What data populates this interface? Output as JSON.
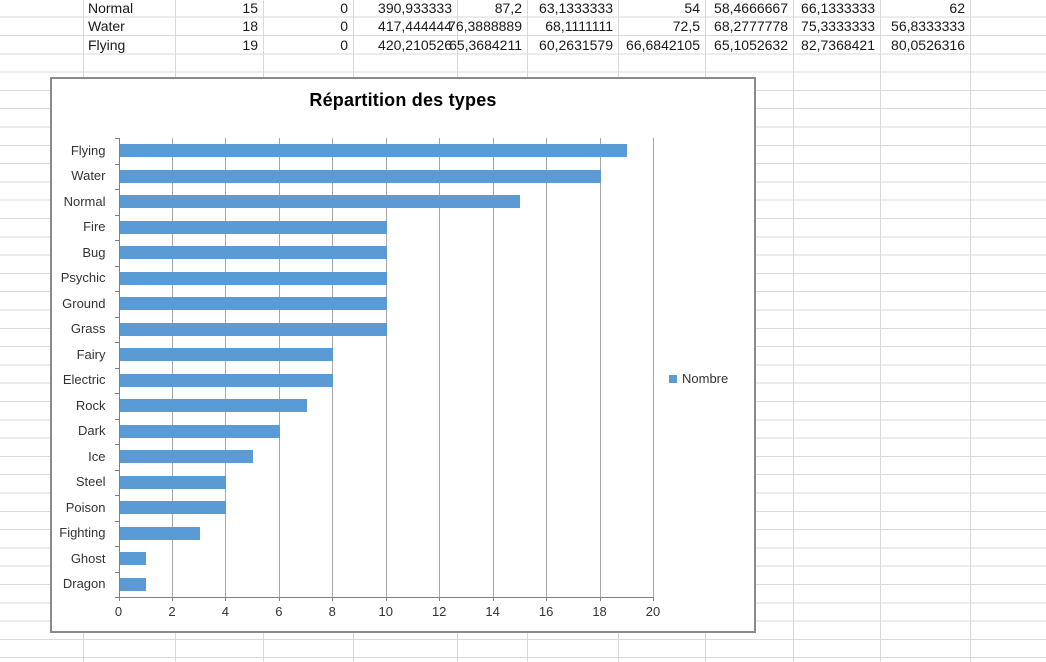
{
  "table": {
    "rows": [
      {
        "name": "Normal",
        "values": [
          "15",
          "0",
          "390,933333",
          "87,2",
          "63,1333333",
          "54",
          "58,4666667",
          "66,1333333",
          "62"
        ]
      },
      {
        "name": "Water",
        "values": [
          "18",
          "0",
          "417,444444",
          "76,3888889",
          "68,1111111",
          "72,5",
          "68,2777778",
          "75,3333333",
          "56,8333333"
        ]
      },
      {
        "name": "Flying",
        "values": [
          "19",
          "0",
          "420,210526",
          "65,3684211",
          "60,2631579",
          "66,6842105",
          "65,1052632",
          "82,7368421",
          "80,0526316"
        ]
      }
    ]
  },
  "chart_data": {
    "type": "bar",
    "orientation": "horizontal",
    "title": "Répartition des types",
    "categories": [
      "Flying",
      "Water",
      "Normal",
      "Fire",
      "Bug",
      "Psychic",
      "Ground",
      "Grass",
      "Fairy",
      "Electric",
      "Rock",
      "Dark",
      "Ice",
      "Steel",
      "Poison",
      "Fighting",
      "Ghost",
      "Dragon"
    ],
    "values": [
      19,
      18,
      15,
      10,
      10,
      10,
      10,
      10,
      8,
      8,
      7,
      6,
      5,
      4,
      4,
      3,
      1,
      1
    ],
    "xlim": [
      0,
      20
    ],
    "xticks": [
      "0",
      "2",
      "4",
      "6",
      "8",
      "10",
      "12",
      "14",
      "16",
      "18",
      "20"
    ],
    "grid": "vertical-major",
    "bar_color": "#5b9bd5",
    "legend": {
      "label": "Nombre",
      "position": "right",
      "marker_color": "#5b9bd5"
    }
  }
}
